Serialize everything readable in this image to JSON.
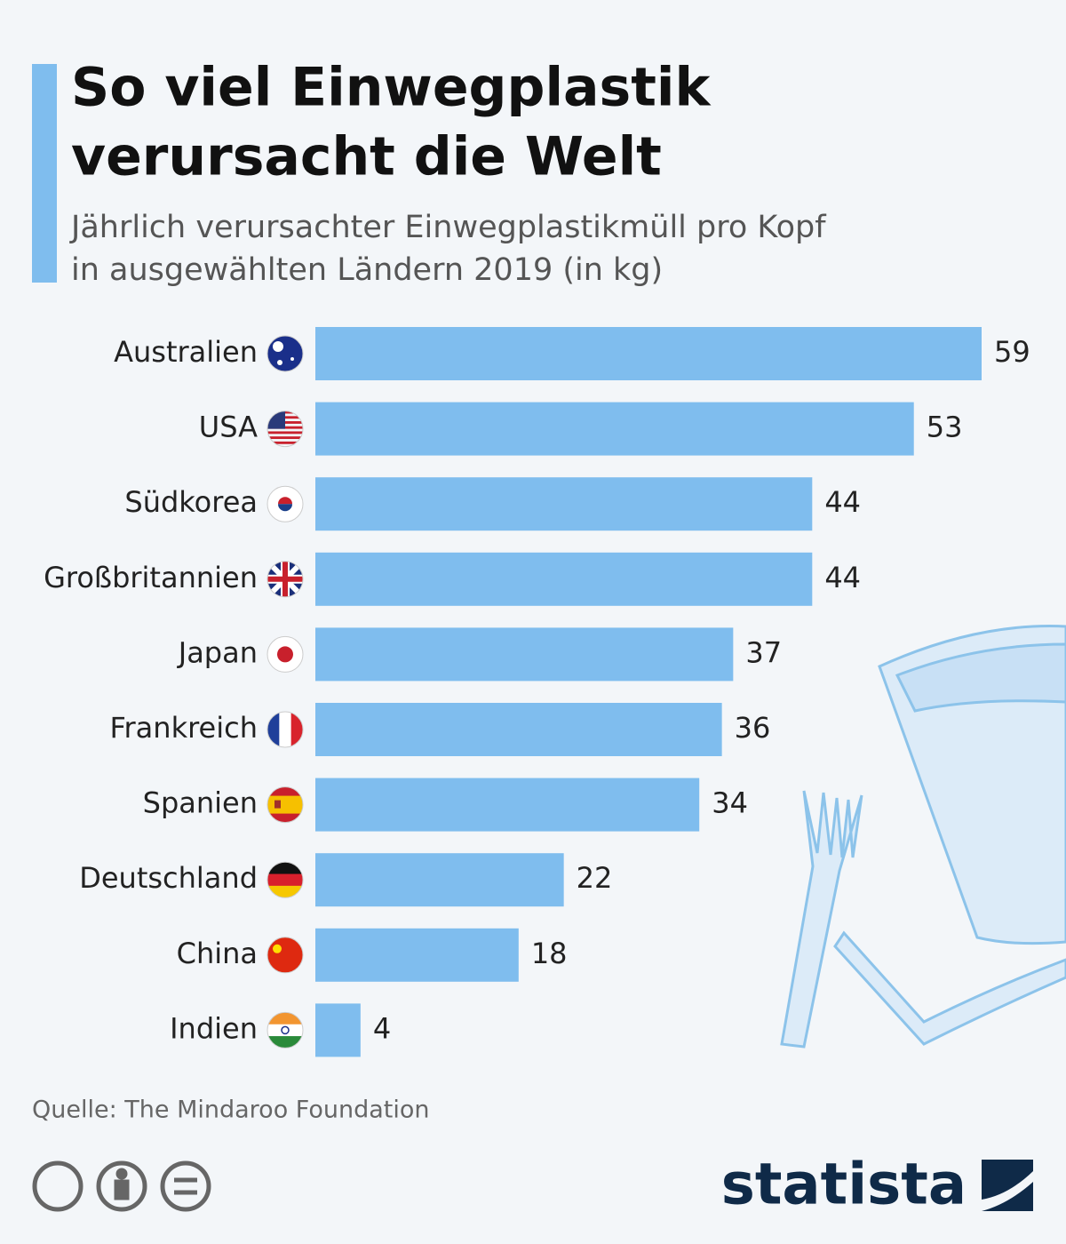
{
  "chart_data": {
    "type": "bar",
    "title": [
      "So viel Einwegplastik",
      "verursacht die Welt"
    ],
    "subtitle": [
      "Jährlich verursachter Einwegplastikmüll pro Kopf",
      "in ausgewählten Ländern 2019 (in kg)"
    ],
    "categories": [
      "Australien",
      "USA",
      "Südkorea",
      "Großbritannien",
      "Japan",
      "Frankreich",
      "Spanien",
      "Deutschland",
      "China",
      "Indien"
    ],
    "values": [
      59,
      53,
      44,
      44,
      37,
      36,
      34,
      22,
      18,
      4
    ],
    "color": "#7fbdee",
    "source": "Quelle: The Mindaroo Foundation",
    "brand": "statista"
  }
}
